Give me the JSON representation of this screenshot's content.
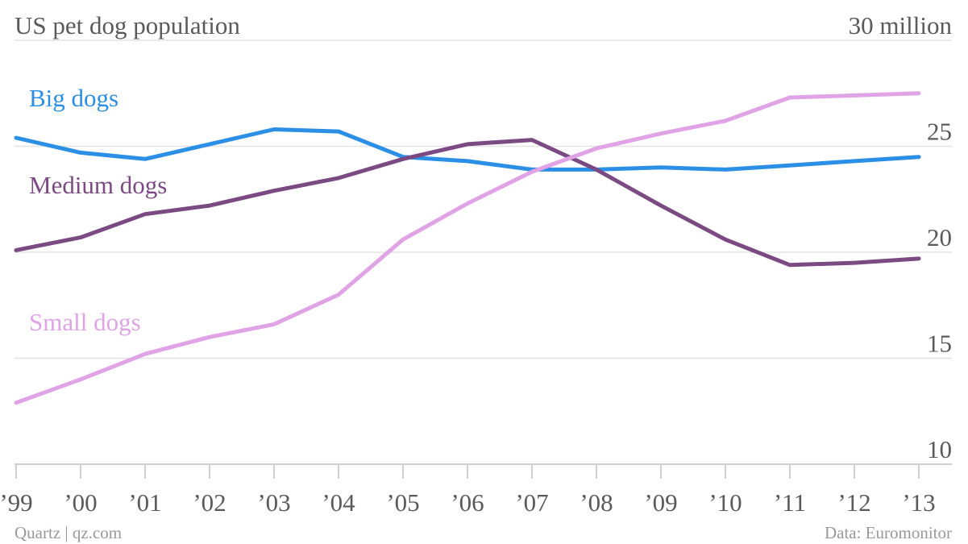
{
  "chart_data": {
    "type": "line",
    "title": "US pet dog population",
    "top_tick_label": "30 million",
    "x": [
      "’99",
      "’00",
      "’01",
      "’02",
      "’03",
      "’04",
      "’05",
      "’06",
      "’07",
      "’08",
      "’09",
      "’10",
      "’11",
      "’12",
      "’13"
    ],
    "ylim": [
      10,
      30
    ],
    "y_ticks": [
      10,
      15,
      20,
      25,
      30
    ],
    "y_tick_labels": [
      "10",
      "15",
      "20",
      "25",
      "30 million"
    ],
    "grid": true,
    "legend": "inline labels at left",
    "series": [
      {
        "name": "Big dogs",
        "color": "#2b8fe6",
        "values": [
          25.4,
          24.7,
          24.4,
          25.1,
          25.8,
          25.7,
          24.5,
          24.3,
          23.9,
          23.9,
          24.0,
          23.9,
          24.1,
          24.3,
          24.5
        ]
      },
      {
        "name": "Medium dogs",
        "color": "#7b4a83",
        "values": [
          20.1,
          20.7,
          21.8,
          22.2,
          22.9,
          23.5,
          24.4,
          25.1,
          25.3,
          23.9,
          22.2,
          20.6,
          19.4,
          19.5,
          19.7
        ]
      },
      {
        "name": "Small dogs",
        "color": "#e0a3e6",
        "values": [
          12.9,
          14.0,
          15.2,
          16.0,
          16.6,
          18.0,
          20.6,
          22.3,
          23.8,
          24.9,
          25.6,
          26.2,
          27.3,
          27.4,
          27.5
        ]
      }
    ]
  },
  "footer": {
    "source_left": "Quartz | qz.com",
    "source_right": "Data: Euromonitor"
  }
}
